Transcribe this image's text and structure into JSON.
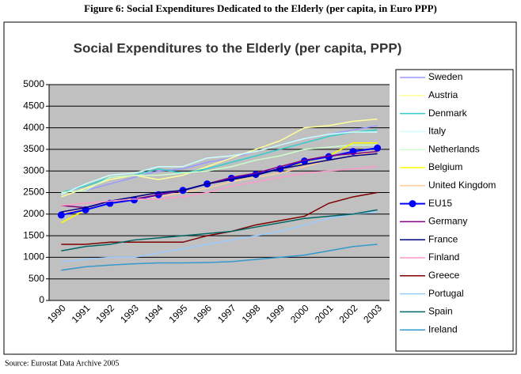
{
  "caption": "Figure 6: Social Expenditures Dedicated to the Elderly (per capita, in Euro PPP)",
  "source": "Source: Eurostat Data Archive 2005",
  "chart_data": {
    "type": "line",
    "title": "Social Expenditures to the Elderly (per capita, PPP)",
    "categories": [
      "1990",
      "1991",
      "1992",
      "1993",
      "1994",
      "1995",
      "1996",
      "1997",
      "1998",
      "1999",
      "2000",
      "2001",
      "2002",
      "2003"
    ],
    "ylim": [
      0,
      5000
    ],
    "yticks": [
      0,
      500,
      1000,
      1500,
      2000,
      2500,
      3000,
      3500,
      4000,
      4500,
      5000
    ],
    "grid": true,
    "series": [
      {
        "name": "Sweden",
        "color": "#9999ff",
        "values": [
          2500,
          2550,
          2700,
          2850,
          3000,
          3050,
          3200,
          3300,
          3450,
          3600,
          3750,
          3850,
          3950,
          4050
        ]
      },
      {
        "name": "Austria",
        "color": "#ffff99",
        "values": [
          2400,
          2600,
          2800,
          2900,
          2800,
          2900,
          3100,
          3300,
          3500,
          3700,
          4000,
          4050,
          4150,
          4200
        ]
      },
      {
        "name": "Denmark",
        "color": "#33cccc",
        "values": [
          2500,
          2650,
          2850,
          2900,
          3050,
          2950,
          3050,
          3200,
          3350,
          3500,
          3650,
          3800,
          3900,
          3950
        ]
      },
      {
        "name": "Italy",
        "color": "#ccffff",
        "values": [
          2450,
          2700,
          2900,
          2950,
          3100,
          3100,
          3300,
          3350,
          3450,
          3600,
          3750,
          3850,
          3900,
          3900
        ]
      },
      {
        "name": "Netherlands",
        "color": "#ccffcc",
        "values": [
          2500,
          2550,
          2850,
          2900,
          2900,
          2950,
          3000,
          3100,
          3250,
          3350,
          3500,
          3550,
          3600,
          3600
        ]
      },
      {
        "name": "Belgium",
        "color": "#ffff00",
        "values": [
          1800,
          2100,
          2250,
          2350,
          2450,
          2550,
          2700,
          2800,
          2900,
          3050,
          3200,
          3350,
          3650,
          3650
        ]
      },
      {
        "name": "United Kingdom",
        "color": "#ffcc99",
        "values": [
          2000,
          2150,
          2300,
          2350,
          2400,
          2500,
          2600,
          2750,
          2850,
          2950,
          3100,
          3250,
          3350,
          3450
        ]
      },
      {
        "name": "EU15",
        "color": "#0000ff",
        "marker": "circle",
        "values": [
          1980,
          2100,
          2250,
          2330,
          2450,
          2550,
          2700,
          2830,
          2920,
          3050,
          3230,
          3330,
          3450,
          3530
        ]
      },
      {
        "name": "Germany",
        "color": "#800080",
        "values": [
          2200,
          2150,
          2300,
          2350,
          2450,
          2550,
          2700,
          2850,
          2950,
          3100,
          3250,
          3350,
          3400,
          3450
        ]
      },
      {
        "name": "France",
        "color": "#000080",
        "values": [
          2050,
          2150,
          2300,
          2400,
          2500,
          2550,
          2700,
          2800,
          2900,
          3050,
          3150,
          3250,
          3350,
          3400
        ]
      },
      {
        "name": "Finland",
        "color": "#ff99cc",
        "values": [
          2200,
          2250,
          2300,
          2350,
          2350,
          2400,
          2500,
          2650,
          2750,
          2850,
          2950,
          3000,
          3050,
          3100
        ]
      },
      {
        "name": "Greece",
        "color": "#800000",
        "values": [
          1300,
          1300,
          1350,
          1350,
          1350,
          1350,
          1500,
          1600,
          1750,
          1850,
          1950,
          2250,
          2400,
          2500
        ]
      },
      {
        "name": "Portugal",
        "color": "#99ccff",
        "values": [
          900,
          950,
          1000,
          1000,
          1100,
          1200,
          1300,
          1400,
          1500,
          1600,
          1750,
          1900,
          2000,
          2050
        ]
      },
      {
        "name": "Spain",
        "color": "#006666",
        "values": [
          1150,
          1250,
          1300,
          1400,
          1450,
          1500,
          1550,
          1600,
          1700,
          1800,
          1900,
          1950,
          2000,
          2100
        ]
      },
      {
        "name": "Ireland",
        "color": "#3399cc",
        "values": [
          700,
          780,
          820,
          850,
          870,
          870,
          880,
          900,
          950,
          1000,
          1050,
          1150,
          1250,
          1300
        ]
      }
    ]
  }
}
